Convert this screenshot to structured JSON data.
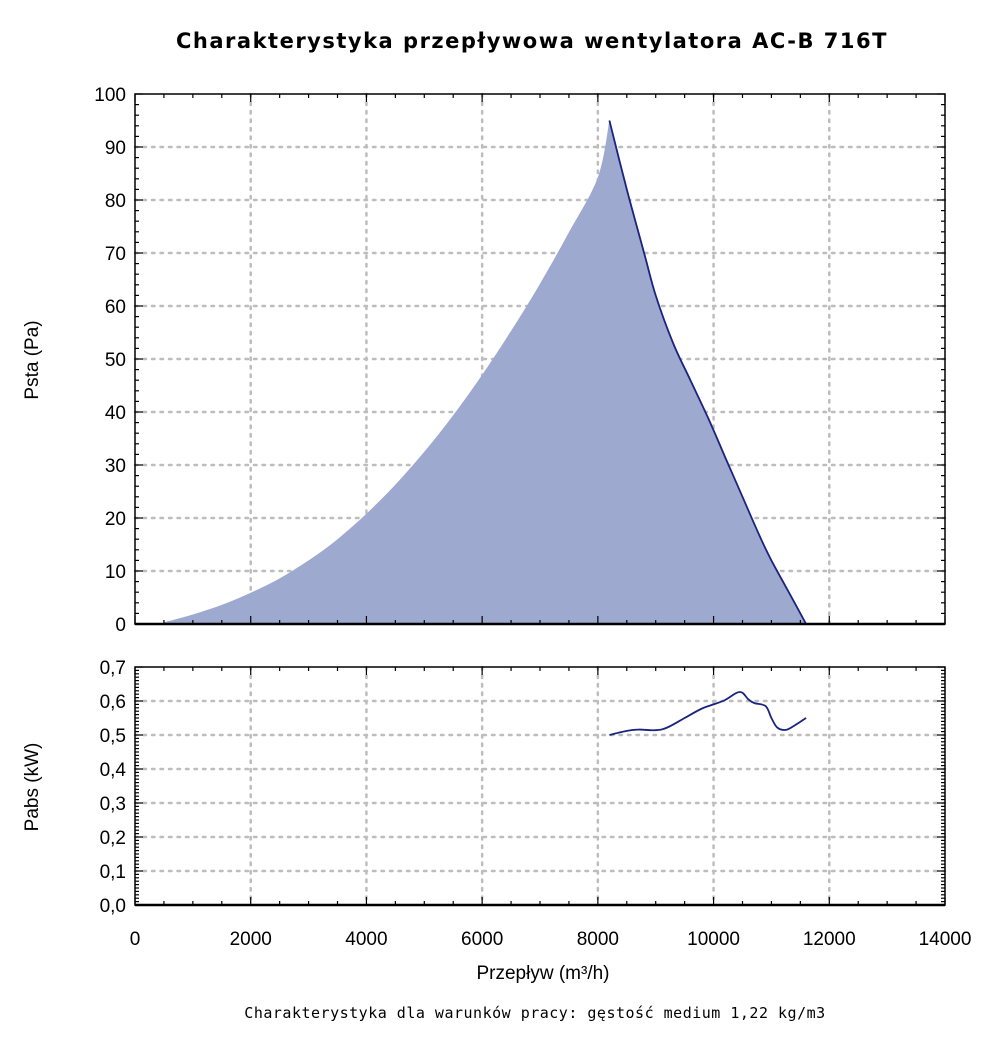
{
  "chart_data": [
    {
      "type": "area",
      "title": "Charakterystyka przepływowa wentylatora AC-B 716T",
      "xlabel": "",
      "ylabel": "Psta (Pa)",
      "xlim": [
        0,
        14000
      ],
      "ylim": [
        0,
        100
      ],
      "grid": true,
      "x_ticks": [
        "0",
        "2000",
        "4000",
        "6000",
        "8000",
        "10000",
        "12000",
        "14000"
      ],
      "y_ticks": [
        "0",
        "10",
        "20",
        "30",
        "40",
        "50",
        "60",
        "70",
        "80",
        "90",
        "100"
      ],
      "area_color": "#9ea9cf",
      "line_color": "#1a237e",
      "area_series": {
        "x": [
          500,
          1000,
          1500,
          2000,
          2500,
          3000,
          3500,
          4000,
          4500,
          5000,
          5500,
          6000,
          6500,
          7000,
          7500,
          8000,
          8200
        ],
        "y": [
          0.3,
          1.8,
          3.6,
          5.9,
          8.6,
          12.0,
          16.0,
          20.8,
          26.3,
          32.5,
          39.4,
          47.0,
          55.3,
          64.2,
          73.9,
          84.3,
          95.0
        ]
      },
      "line_series": {
        "x": [
          8200,
          8500,
          8800,
          9000,
          9300,
          9600,
          9900,
          10200,
          10500,
          10800,
          11000,
          11300,
          11600
        ],
        "y": [
          95.0,
          82.0,
          70.0,
          62.0,
          53.0,
          46.0,
          39.0,
          31.5,
          24.0,
          16.5,
          12.0,
          6.0,
          0.0
        ]
      }
    },
    {
      "type": "line",
      "title": "",
      "xlabel": "Przepływ (m³/h)",
      "ylabel": "Pabs (kW)",
      "xlim": [
        0,
        14000
      ],
      "ylim": [
        0,
        0.7
      ],
      "grid": true,
      "x_ticks": [
        "0",
        "2000",
        "4000",
        "6000",
        "8000",
        "10000",
        "12000",
        "14000"
      ],
      "y_ticks": [
        "0,0",
        "0,1",
        "0,2",
        "0,3",
        "0,4",
        "0,5",
        "0,6",
        "0,7"
      ],
      "line_color": "#1a237e",
      "series": [
        {
          "x": [
            8200,
            8500,
            8700,
            9000,
            9200,
            9500,
            9800,
            10000,
            10200,
            10400,
            10500,
            10600,
            10700,
            10900,
            11000,
            11100,
            11250,
            11400,
            11600
          ],
          "y": [
            0.5,
            0.512,
            0.516,
            0.514,
            0.522,
            0.55,
            0.578,
            0.59,
            0.603,
            0.624,
            0.624,
            0.605,
            0.594,
            0.585,
            0.55,
            0.522,
            0.515,
            0.528,
            0.55
          ]
        }
      ]
    }
  ],
  "footnote": "Charakterystyka dla warunków pracy: gęstość medium 1,22 kg/m3"
}
